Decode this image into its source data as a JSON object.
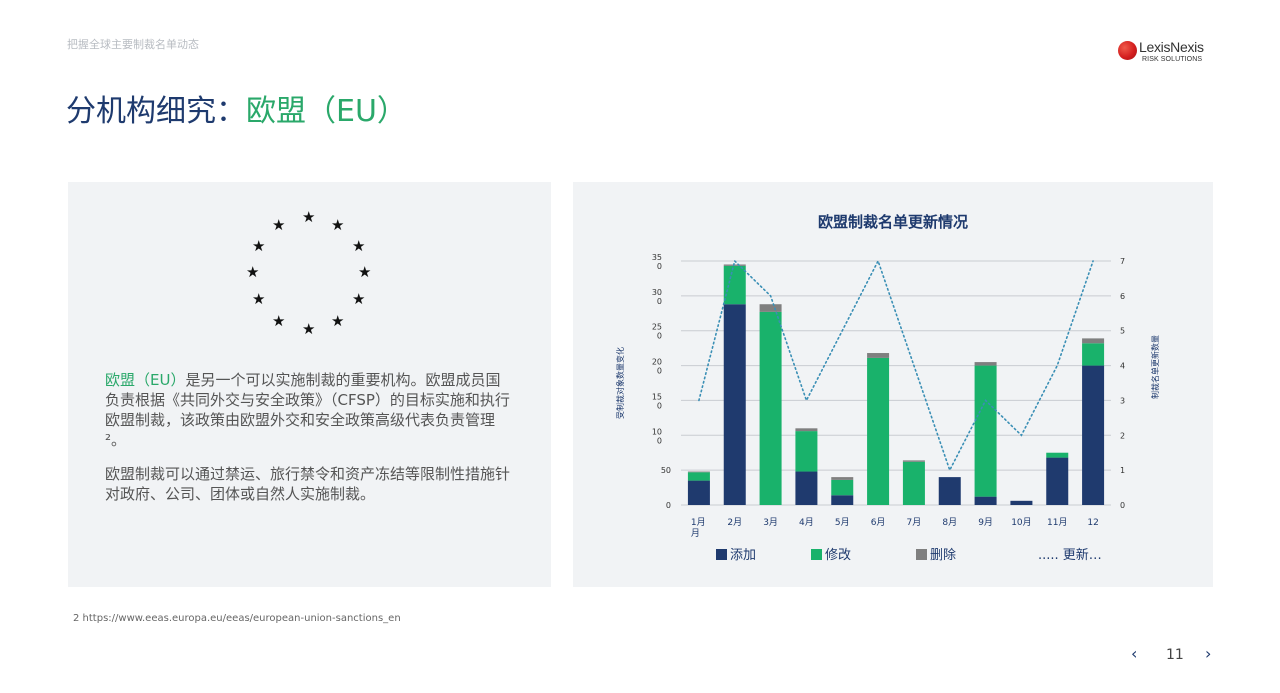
{
  "header": {
    "eyebrow": "把握全球主要制裁名单动态",
    "logo_name": "LexisNexis",
    "logo_sub": "RISK SOLUTIONS",
    "title_prefix": "分机构细究：",
    "title_accent": "欧盟（EU）"
  },
  "left": {
    "p1_accent": "欧盟（EU）",
    "p1_rest": "是另一个可以实施制裁的重要机构。欧盟成员国负责根据《共同外交与安全政策》（CFSP）的目标实施和执行欧盟制裁，该政策由欧盟外交和安全政策高级代表负责管理²。",
    "p2": "欧盟制裁可以通过禁运、旅行禁令和资产冻结等限制性措施针对政府、公司、团体或自然人实施制裁。"
  },
  "footnote": "2 https://www.eeas.europa.eu/eeas/european-union-sanctions_en",
  "pager": {
    "prev": "‹",
    "page": "11",
    "next": "›"
  },
  "colors": {
    "navy": "#1f3a6e",
    "green": "#19b26b",
    "gray": "#7f7f7f",
    "dotted": "#3a8fb5"
  },
  "chart_data": {
    "type": "bar",
    "title": "欧盟制裁名单更新情况",
    "categories": [
      "1月月",
      "2月",
      "3月",
      "4月",
      "5月",
      "6月",
      "7月",
      "8月",
      "9月",
      "10月",
      "11月",
      "12"
    ],
    "y_ticks": [
      [
        "0"
      ],
      [
        "50"
      ],
      [
        "10",
        "0"
      ],
      [
        "15",
        "0"
      ],
      [
        "20",
        "0"
      ],
      [
        "25",
        "0"
      ],
      [
        "30",
        "0"
      ],
      [
        "35",
        "0"
      ]
    ],
    "ylim": [
      0,
      350
    ],
    "y2lim": [
      0,
      7
    ],
    "y2_ticks": [
      "0",
      "1",
      "2",
      "3",
      "4",
      "5",
      "6",
      "7"
    ],
    "ylabel": "受制裁对象数量变化",
    "y2label": "制裁名单更新数量",
    "legend": [
      "添加",
      "修改",
      "删除",
      "..... 更新…"
    ],
    "series": [
      {
        "name": "添加",
        "values": [
          35,
          288,
          0,
          48,
          14,
          0,
          0,
          40,
          12,
          6,
          68,
          200
        ]
      },
      {
        "name": "修改",
        "values": [
          12,
          55,
          277,
          58,
          22,
          211,
          62,
          0,
          188,
          0,
          7,
          32
        ]
      },
      {
        "name": "删除",
        "values": [
          1,
          2,
          11,
          4,
          4,
          7,
          2,
          0,
          5,
          0,
          0,
          7
        ]
      },
      {
        "name": "更新…",
        "values": [
          3,
          7,
          6,
          3,
          5,
          7,
          4,
          1,
          3,
          2,
          4,
          7
        ],
        "axis": "right",
        "style": "dotted-line"
      }
    ],
    "grid": true,
    "legend_position": "bottom"
  }
}
